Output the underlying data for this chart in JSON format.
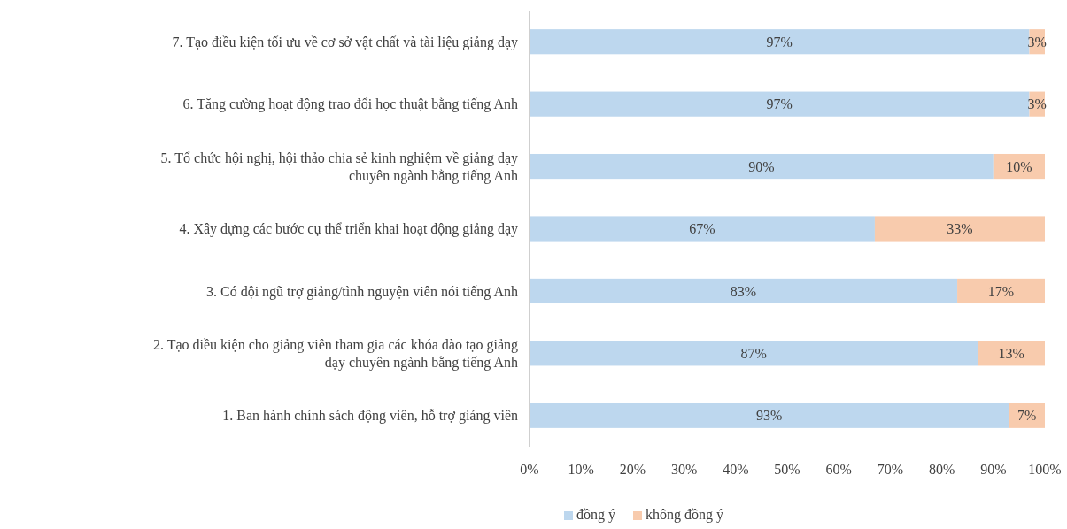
{
  "chart_data": {
    "type": "bar",
    "orientation": "horizontal",
    "stacked": true,
    "categories": [
      "7. Tạo điều kiện tối ưu về cơ sở vật chất và tài liệu giảng dạy",
      "6. Tăng cường hoạt động trao đổi học thuật bằng tiếng Anh",
      "5. Tổ chức hội nghị, hội thảo chia sẻ kinh nghiệm về giảng dạy chuyên ngành bằng tiếng Anh",
      "4. Xây dựng các bước cụ thể triển khai hoạt động giảng dạy",
      "3. Có đội ngũ trợ giảng/tình nguyện viên nói tiếng Anh",
      "2. Tạo điều kiện cho giảng viên tham gia các khóa đào tạo giảng dạy chuyên ngành bằng tiếng Anh",
      "1. Ban hành chính sách động viên, hỗ trợ giảng viên"
    ],
    "series": [
      {
        "name": "đồng ý",
        "color": "#bdd7ee",
        "values": [
          97,
          97,
          90,
          67,
          83,
          87,
          93
        ],
        "value_labels": [
          "97%",
          "97%",
          "90%",
          "67%",
          "83%",
          "87%",
          "93%"
        ]
      },
      {
        "name": "không đồng ý",
        "color": "#f8cbad",
        "values": [
          3,
          3,
          10,
          33,
          17,
          13,
          7
        ],
        "value_labels": [
          "3%",
          "3%",
          "10%",
          "33%",
          "17%",
          "13%",
          "7%"
        ]
      }
    ],
    "xlim": [
      0,
      100
    ],
    "xticks": [
      {
        "value": 0,
        "label": "0%"
      },
      {
        "value": 10,
        "label": "10%"
      },
      {
        "value": 20,
        "label": "20%"
      },
      {
        "value": 30,
        "label": "30%"
      },
      {
        "value": 40,
        "label": "40%"
      },
      {
        "value": 50,
        "label": "50%"
      },
      {
        "value": 60,
        "label": "60%"
      },
      {
        "value": 70,
        "label": "70%"
      },
      {
        "value": 80,
        "label": "80%"
      },
      {
        "value": 90,
        "label": "90%"
      },
      {
        "value": 100,
        "label": "100%"
      }
    ],
    "grid": false,
    "legend": "bottom"
  }
}
